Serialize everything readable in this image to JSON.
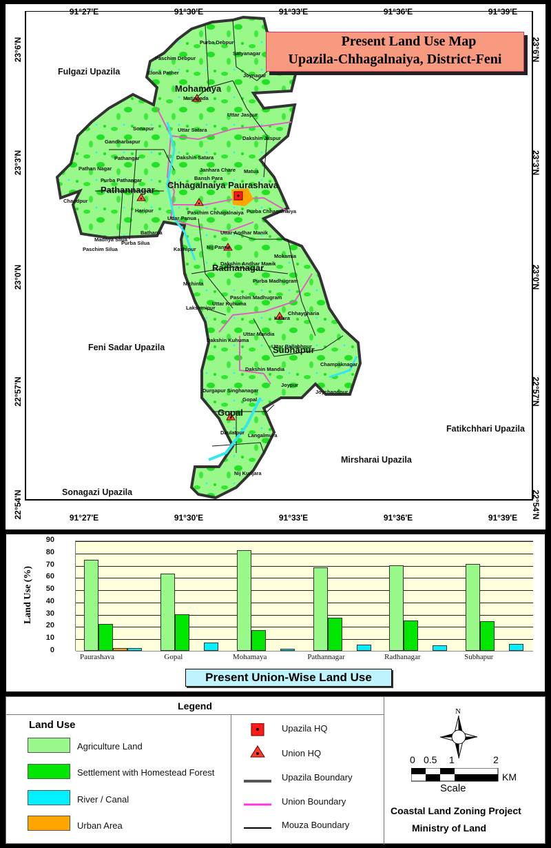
{
  "title": {
    "line1": "Present Land Use  Map",
    "line2": "Upazila-Chhagalnaiya, District-Feni"
  },
  "map": {
    "longitude_ticks": [
      "91°27'E",
      "91°30'E",
      "91°33'E",
      "91°36'E",
      "91°39'E"
    ],
    "latitude_ticks": [
      "23°6'N",
      "23°3'N",
      "23°0'N",
      "22°57'N",
      "22°54'N"
    ],
    "neighbouring_upazilas": {
      "fulgazi": "Fulgazi Upazila",
      "feni_sadar": "Feni Sadar Upazila",
      "sonagazi": "Sonagazi Upazila",
      "mirsharai": "Mirsharai Upazila",
      "fatikchhari": "Fatikchhari Upazila"
    },
    "unions": [
      "Mohamaya",
      "Pathannagar",
      "Chhagalnaiya Paurashava",
      "Radhanagar",
      "Subhapur",
      "Gopal"
    ],
    "mouzas": {
      "purba_debpur": "Purba Debpur",
      "satyanagar": "Satyanagar",
      "paschim_debpur": "Paschim Debpur",
      "elona_pather": "Elona Pather",
      "joynagar": "Joynagar",
      "matiagada": "Matiagada",
      "uttar_jaspur": "Uttar Jaspur",
      "sonapur": "Sonapur",
      "uttar_satara": "Uttar Satara",
      "dakshin_jaspur": "Dakshin Jaspur",
      "gandharbapur": "Gandharbapur",
      "pathangar": "Pathangar",
      "dakshin_satara": "Dakshin Satara",
      "pathan_nagar": "Pathan Nagar",
      "janhara_chare": "Janhara Chare",
      "matua": "Matua",
      "purba_pathangar": "Purba Pathangar",
      "bansh_para": "Bansh Para",
      "chandpur": "Chandpur",
      "haripur": "Haripur",
      "paschim_chhagalnaiya": "Paschim Chhagalnaiya",
      "purba_chhagalnaiya": "Purba Chhagalnaiya",
      "uttar_panua": "Uttar Panua",
      "bathania": "Bathania",
      "madhya_silua": "Madhya Silua",
      "purba_silua": "Purba Silua",
      "paschim_silua": "Paschim Silua",
      "uttar_andhar_manik": "Uttar Andhar Manik",
      "kashipur": "Kashipur",
      "nij_panna": "Nij Panna",
      "mokamia": "Mokamia",
      "dakshin_andhar_manik": "Dakshin Andhar Manik",
      "nichinta": "Nichinta",
      "purba_madhugram": "Purba Madhugram",
      "paschim_madhugram": "Paschim Madhugram",
      "uttar_kuhuma": "Uttar Kuhuma",
      "lakshmipur": "Lakshmipur",
      "chhaygharia": "Chhaygharia",
      "kalara": "Kalara",
      "uttar_mandia": "Uttar Mandia",
      "dakshin_kuhuma": "Dakshin Kuhuma",
      "uttar_ballabhpur": "Uttar Ballabhpur",
      "champaknagar": "Champaknagar",
      "dakshin_mandia": "Dakshin Mandia",
      "joypur": "Joypur",
      "durgapur_singhanagar": "Durgapur Singhanagar",
      "gopal": "Gopal",
      "joychandpur": "Joychandpur",
      "daulatpur": "Daulatpur",
      "langalmura": "Langalmura",
      "nij_kunjara": "Nij Kunjara"
    }
  },
  "chart_data": {
    "type": "bar",
    "title": "Present Union-Wise Land Use",
    "xlabel": "",
    "ylabel": "Land Use (%)",
    "ylim": [
      0,
      90
    ],
    "yticks": [
      "90",
      "80",
      "70",
      "60",
      "50",
      "40",
      "30",
      "20",
      "10",
      "0"
    ],
    "grid": true,
    "categories": [
      "Paurashava",
      "Gopal",
      "Mohamaya",
      "Pathannagar",
      "Radhanagar",
      "Subhapur"
    ],
    "series": [
      {
        "name": "Agriculture Land",
        "color": "#98f98a",
        "values": [
          74,
          63,
          82,
          68,
          70,
          71
        ]
      },
      {
        "name": "Settlement with Homestead Forest",
        "color": "#00e600",
        "values": [
          22,
          30,
          17,
          27,
          25,
          24
        ]
      },
      {
        "name": "Urban Area",
        "color": "#ffa500",
        "values": [
          2,
          0,
          0,
          0,
          0,
          0
        ]
      },
      {
        "name": "River / Canal",
        "color": "#00f0ff",
        "values": [
          2,
          7,
          1.5,
          5,
          4.5,
          5.5
        ]
      }
    ]
  },
  "legend": {
    "header": "Legend",
    "land_use_title": "Land Use",
    "land_use": [
      {
        "label": "Agriculture Land",
        "color": "#98f98a"
      },
      {
        "label": "Settlement with Homestead Forest",
        "color": "#00e600"
      },
      {
        "label": "River / Canal",
        "color": "#00f0ff"
      },
      {
        "label": "Urban Area",
        "color": "#ffa500"
      }
    ],
    "symbols": [
      {
        "label": "Upazila HQ"
      },
      {
        "label": "Union HQ"
      },
      {
        "label": "Upazila Boundary",
        "color": "#555555"
      },
      {
        "label": "Union Boundary",
        "color": "#ff33cc"
      },
      {
        "label": "Mouza Boundary",
        "color": "#000000"
      }
    ],
    "north_label": "N",
    "scale": {
      "ticks": [
        "0",
        "0.5",
        "1",
        "2"
      ],
      "unit": "KM",
      "label": "Scale"
    },
    "credit_line1": "Coastal Land Zoning Project",
    "credit_line2": "Ministry of Land"
  }
}
